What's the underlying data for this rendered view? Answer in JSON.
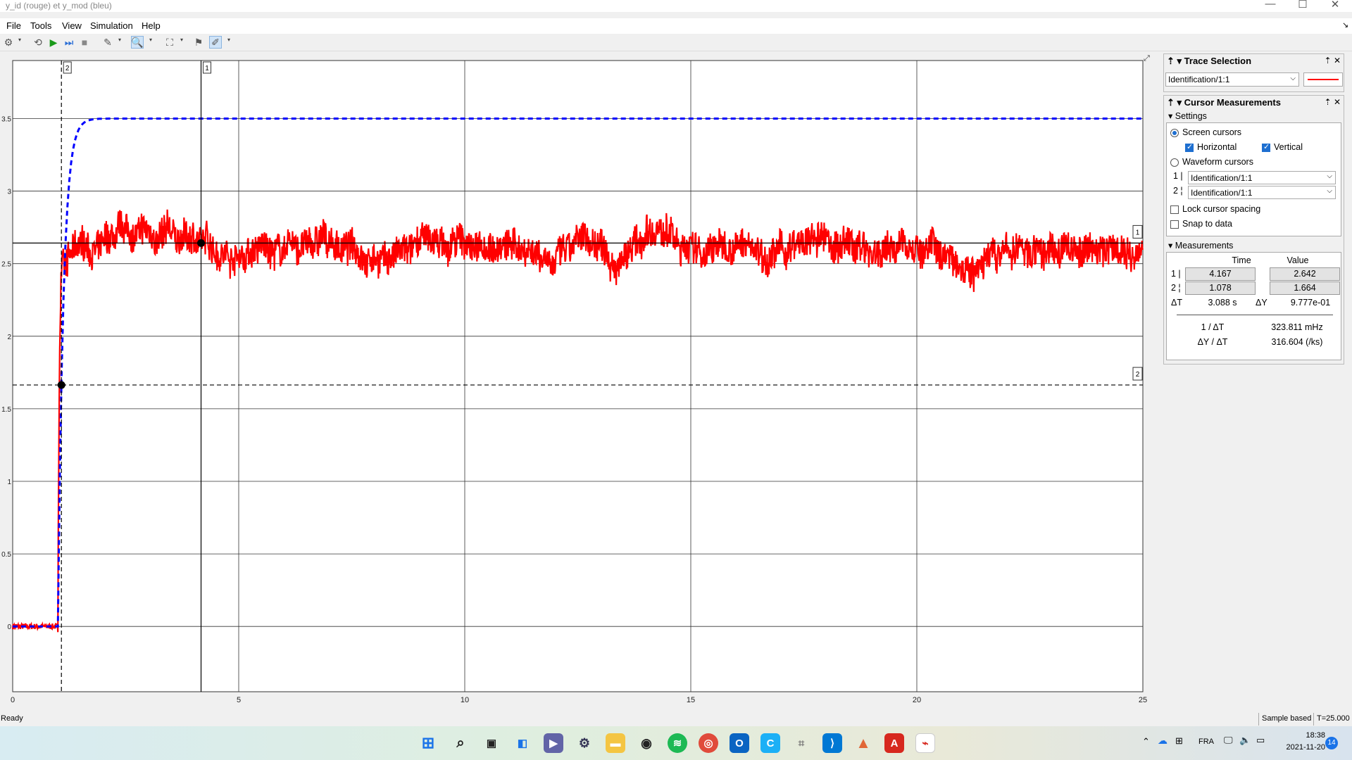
{
  "window": {
    "title": "y_id (rouge)  et y_mod (bleu)",
    "minimize": "—",
    "maximize": "☐",
    "close": "✕",
    "restore": "↘"
  },
  "menu": [
    "File",
    "Tools",
    "View",
    "Simulation",
    "Help"
  ],
  "toolbar_icons": [
    "settings-icon",
    "run-back-icon",
    "run-icon",
    "step-forward-icon",
    "stop-icon",
    "highlight-icon",
    "zoom-icon",
    "fit-icon",
    "cursor-pin-icon",
    "edit-icon"
  ],
  "trace_panel": {
    "title": "Trace Selection",
    "selected": "Identification/1:1",
    "line_color": "#ff0000",
    "pin": "⇡",
    "close": "✕"
  },
  "cursor_panel": {
    "title": "Cursor Measurements",
    "settings_label": "Settings",
    "screen_cursors": "Screen cursors",
    "horizontal": "Horizontal",
    "vertical": "Vertical",
    "waveform_cursors": "Waveform cursors",
    "wf1_label": "1",
    "wf2_label": "2",
    "wf1_value": "Identification/1:1",
    "wf2_value": "Identification/1:1",
    "lock_spacing": "Lock cursor spacing",
    "snap": "Snap to data",
    "measurements_label": "Measurements",
    "col_time": "Time",
    "col_value": "Value",
    "rows": [
      {
        "id": "1",
        "time": "4.167",
        "value": "2.642"
      },
      {
        "id": "2",
        "time": "1.078",
        "value": "1.664"
      }
    ],
    "dt_label": "ΔT",
    "dt_value": "3.088 s",
    "dy_label": "ΔY",
    "dy_value": "9.777e-01",
    "inv_dt_label": "1 / ΔT",
    "inv_dt_value": "323.811 mHz",
    "slope_label": "ΔY / ΔT",
    "slope_value": "316.604 (/ks)"
  },
  "status": {
    "left": "Ready",
    "mode": "Sample based",
    "time": "T=25.000"
  },
  "taskbar": {
    "lang": "FRA",
    "clock": "18:38",
    "date": "2021-11-20",
    "badge": "14"
  },
  "chart_data": {
    "type": "line",
    "title": "",
    "xlabel": "",
    "ylabel": "",
    "xlim": [
      0,
      25
    ],
    "ylim": [
      -0.45,
      3.9
    ],
    "xticks": [
      "0",
      "5",
      "10",
      "15",
      "20",
      "25"
    ],
    "yticks": [
      "0",
      "0.5",
      "1",
      "1.5",
      "2",
      "2.5",
      "3",
      "3.5"
    ],
    "grid": true,
    "series": [
      {
        "color": "#ff0000",
        "style": "solid",
        "step_time": 1.0,
        "initial": 0.0,
        "final_mean": 2.6,
        "noise_amplitude": 0.2
      },
      {
        "color": "#0000ff",
        "style": "dashed",
        "step_time": 1.0,
        "initial": 0.0,
        "final": 3.5,
        "time_constant": 0.12
      }
    ],
    "cursors": {
      "vertical": [
        {
          "label": "1",
          "x": 4.167,
          "style": "solid"
        },
        {
          "label": "2",
          "x": 1.078,
          "style": "dashed"
        }
      ],
      "horizontal": [
        {
          "label": "1",
          "y": 2.642,
          "style": "solid"
        },
        {
          "label": "2",
          "y": 1.664,
          "style": "dashed"
        }
      ]
    }
  }
}
